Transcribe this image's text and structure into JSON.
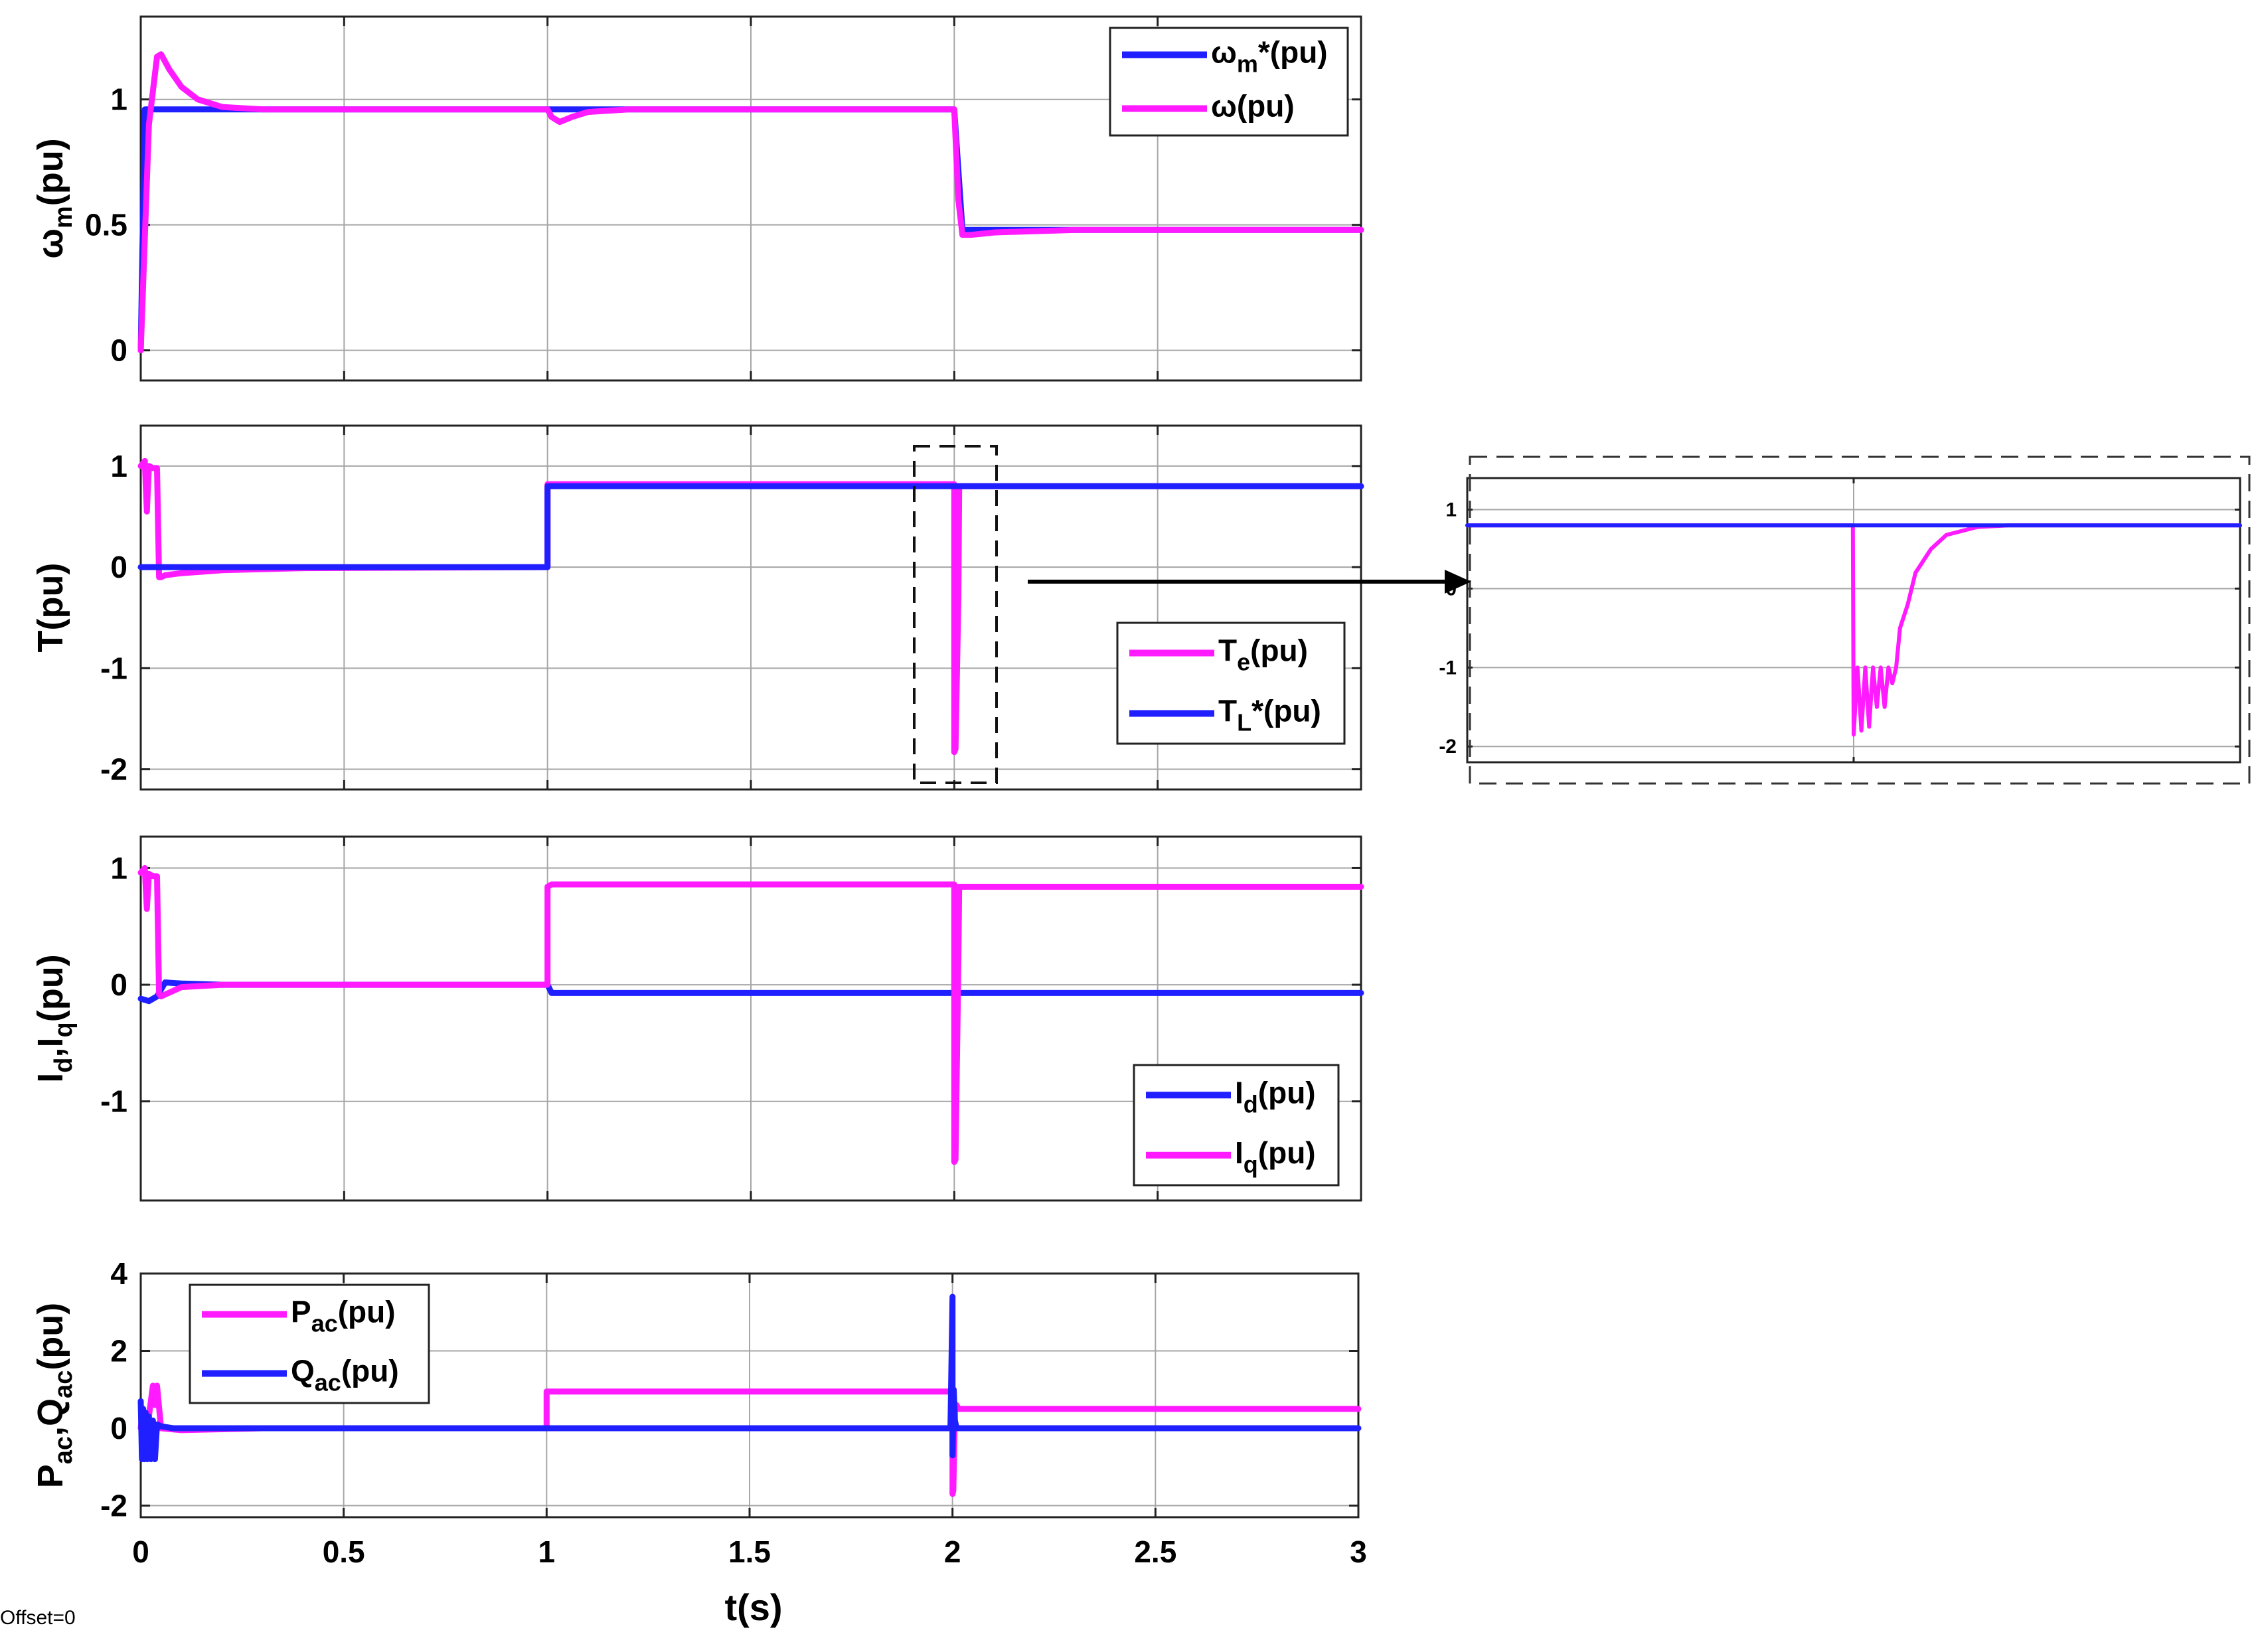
{
  "figure": {
    "xlabel": "t(s)",
    "offset_text": "Offset=0"
  },
  "colors": {
    "reference": "#1f1fff",
    "measured": "#ff1aff"
  },
  "chart_data": [
    {
      "type": "line",
      "ylabel": {
        "main": "ω",
        "sub": "m",
        "tail": "(pu)"
      },
      "xlim": [
        0,
        3
      ],
      "ylim": [
        -0.12,
        1.33
      ],
      "yticks": [
        0,
        0.5,
        1
      ],
      "ytick_labels": [
        "0",
        "0.5",
        "1"
      ],
      "xticks": [
        0,
        0.5,
        1,
        1.5,
        2,
        2.5,
        3
      ],
      "legend_position": "top-right",
      "series": [
        {
          "name": "ωm*(pu)",
          "legend": {
            "main": "ω",
            "sub": "m",
            "tail": "*(pu)"
          },
          "color": "#1f1fff",
          "x": [
            0,
            0.01,
            1.0,
            1.001,
            2.0,
            2.02,
            3.0
          ],
          "y": [
            0,
            0.96,
            0.96,
            0.96,
            0.96,
            0.48,
            0.48
          ]
        },
        {
          "name": "ω(pu)",
          "legend": {
            "main": "ω",
            "sub": "",
            "tail": "(pu)"
          },
          "color": "#ff1aff",
          "x": [
            0,
            0.02,
            0.04,
            0.05,
            0.07,
            0.1,
            0.14,
            0.2,
            0.3,
            1.0,
            1.01,
            1.03,
            1.06,
            1.1,
            1.2,
            1.4,
            2.0,
            2.01,
            2.02,
            2.04,
            2.1,
            2.3,
            3.0
          ],
          "y": [
            0,
            0.9,
            1.17,
            1.18,
            1.12,
            1.05,
            1.0,
            0.97,
            0.96,
            0.96,
            0.93,
            0.91,
            0.93,
            0.95,
            0.96,
            0.96,
            0.96,
            0.6,
            0.46,
            0.46,
            0.47,
            0.48,
            0.48
          ]
        }
      ]
    },
    {
      "type": "line",
      "ylabel": {
        "main": "T",
        "sub": "",
        "tail": "(pu)"
      },
      "xlim": [
        0,
        3
      ],
      "ylim": [
        -2.2,
        1.4
      ],
      "yticks": [
        -2,
        -1,
        0,
        1
      ],
      "ytick_labels": [
        "-2",
        "-1",
        "0",
        "1"
      ],
      "xticks": [
        0,
        0.5,
        1,
        1.5,
        2,
        2.5,
        3
      ],
      "legend_position": "bottom-right",
      "series": [
        {
          "name": "Te(pu)",
          "legend": {
            "main": "T",
            "sub": "e",
            "tail": "(pu)"
          },
          "color": "#ff1aff",
          "x": [
            0,
            0.01,
            0.015,
            0.02,
            0.03,
            0.04,
            0.045,
            0.05,
            0.06,
            0.1,
            0.2,
            0.4,
            1.0,
            1.0,
            1.01,
            1.5,
            1.995,
            2.0,
            2.0,
            2.003,
            2.01,
            2.012,
            3.0
          ],
          "y": [
            1.0,
            1.05,
            0.55,
            1.0,
            0.98,
            0.98,
            -0.1,
            -0.1,
            -0.08,
            -0.06,
            -0.03,
            -0.01,
            0.0,
            0.82,
            0.82,
            0.82,
            0.82,
            0.82,
            -1.83,
            -1.8,
            -0.3,
            0.8,
            0.8
          ]
        },
        {
          "name": "TL*(pu)",
          "legend": {
            "main": "T",
            "sub": "L",
            "tail": "*(pu)"
          },
          "color": "#1f1fff",
          "x": [
            0,
            1.0,
            1.0,
            3.0
          ],
          "y": [
            0,
            0,
            0.8,
            0.8
          ]
        }
      ]
    },
    {
      "type": "line",
      "ylabel": {
        "main": "I",
        "sub": "d",
        "mid": ",I",
        "sub2": "q",
        "tail": "(pu)"
      },
      "xlim": [
        0,
        3
      ],
      "ylim": [
        -1.85,
        1.27
      ],
      "yticks": [
        -1,
        0,
        1
      ],
      "ytick_labels": [
        "-1",
        "0",
        "1"
      ],
      "xticks": [
        0,
        0.5,
        1,
        1.5,
        2,
        2.5,
        3
      ],
      "legend_position": "bottom-right",
      "series": [
        {
          "name": "Id(pu)",
          "legend": {
            "main": "I",
            "sub": "d",
            "tail": "(pu)"
          },
          "color": "#1f1fff",
          "x": [
            0,
            0.02,
            0.04,
            0.06,
            0.1,
            0.2,
            1.0,
            1.01,
            2.0,
            2.01,
            3.0
          ],
          "y": [
            -0.12,
            -0.14,
            -0.1,
            0.02,
            0.01,
            0.0,
            0.0,
            -0.07,
            -0.07,
            -0.07,
            -0.07
          ]
        },
        {
          "name": "Iq(pu)",
          "legend": {
            "main": "I",
            "sub": "q",
            "tail": "(pu)"
          },
          "color": "#ff1aff",
          "x": [
            0,
            0.01,
            0.015,
            0.02,
            0.03,
            0.04,
            0.045,
            0.05,
            0.1,
            0.2,
            1.0,
            1.0,
            1.01,
            1.5,
            2.0,
            2.0,
            2.003,
            2.01,
            2.012,
            3.0
          ],
          "y": [
            0.96,
            1.0,
            0.65,
            0.95,
            0.93,
            0.93,
            -0.08,
            -0.1,
            -0.02,
            0.0,
            0.0,
            0.84,
            0.86,
            0.86,
            0.86,
            -1.52,
            -1.5,
            0.2,
            0.84,
            0.84
          ]
        }
      ]
    },
    {
      "type": "line",
      "ylabel": {
        "main": "P",
        "sub": "ac",
        "mid": ",Q",
        "sub2": "ac",
        "tail": "(pu)"
      },
      "xlim": [
        0,
        3
      ],
      "ylim": [
        -2.3,
        4.0
      ],
      "yticks": [
        -2,
        0,
        2,
        4
      ],
      "ytick_labels": [
        "-2",
        "0",
        "2",
        "4"
      ],
      "xticks": [
        0,
        0.5,
        1,
        1.5,
        2,
        2.5,
        3
      ],
      "xtick_labels": [
        "0",
        "0.5",
        "1",
        "1.5",
        "2",
        "2.5",
        "3"
      ],
      "legend_position": "top-left",
      "series": [
        {
          "name": "Pac(pu)",
          "legend": {
            "main": "P",
            "sub": "ac",
            "tail": "(pu)"
          },
          "color": "#ff1aff",
          "x": [
            0,
            0.005,
            0.01,
            0.02,
            0.03,
            0.035,
            0.04,
            0.05,
            0.1,
            0.3,
            1.0,
            1.0,
            1.01,
            1.5,
            2.0,
            2.0,
            2.002,
            2.006,
            2.01,
            2.015,
            3.0
          ],
          "y": [
            0.0,
            0.5,
            -0.5,
            0.3,
            1.1,
            0.6,
            1.1,
            0.0,
            -0.05,
            0.0,
            0.0,
            0.95,
            0.95,
            0.95,
            0.95,
            -1.7,
            -1.6,
            0.5,
            0.6,
            0.5,
            0.5
          ]
        },
        {
          "name": "Qac(pu)",
          "legend": {
            "main": "Q",
            "sub": "ac",
            "tail": "(pu)"
          },
          "color": "#1f1fff",
          "x": [
            0,
            0.003,
            0.006,
            0.009,
            0.012,
            0.016,
            0.02,
            0.025,
            0.03,
            0.035,
            0.04,
            0.05,
            0.08,
            0.2,
            1.0,
            1.5,
            1.995,
            2.0,
            2.0,
            2.003,
            2.006,
            2.01,
            3.0
          ],
          "y": [
            0.7,
            -0.8,
            0.5,
            -0.8,
            0.4,
            -0.8,
            0.3,
            -0.8,
            0.2,
            -0.8,
            0.1,
            0.05,
            0.0,
            0.0,
            0.0,
            0.0,
            0.0,
            3.4,
            -0.7,
            1.0,
            0.2,
            0.0,
            0.0
          ]
        }
      ]
    },
    {
      "type": "line",
      "role": "zoom-inset",
      "xlim": [
        0,
        1
      ],
      "ylim": [
        -2.2,
        1.4
      ],
      "yticks": [
        -2,
        -1,
        0,
        1
      ],
      "ytick_labels": [
        "-2",
        "-1",
        "0",
        "1"
      ],
      "xticks": [
        0,
        0.5,
        1
      ],
      "series": [
        {
          "name": "Te(pu)",
          "color": "#ff1aff",
          "x": [
            0,
            0.499,
            0.5,
            0.505,
            0.51,
            0.515,
            0.52,
            0.525,
            0.53,
            0.535,
            0.54,
            0.545,
            0.55,
            0.555,
            0.56,
            0.57,
            0.58,
            0.6,
            0.62,
            0.66,
            0.7,
            1.0
          ],
          "y": [
            0.8,
            0.8,
            -1.85,
            -1.0,
            -1.8,
            -1.0,
            -1.75,
            -1.0,
            -1.5,
            -1.0,
            -1.5,
            -1.0,
            -1.2,
            -1.0,
            -0.5,
            -0.2,
            0.2,
            0.5,
            0.68,
            0.78,
            0.8,
            0.8
          ]
        },
        {
          "name": "TL*(pu)",
          "color": "#1f1fff",
          "x": [
            0,
            1.0
          ],
          "y": [
            0.8,
            0.8
          ]
        }
      ]
    }
  ]
}
